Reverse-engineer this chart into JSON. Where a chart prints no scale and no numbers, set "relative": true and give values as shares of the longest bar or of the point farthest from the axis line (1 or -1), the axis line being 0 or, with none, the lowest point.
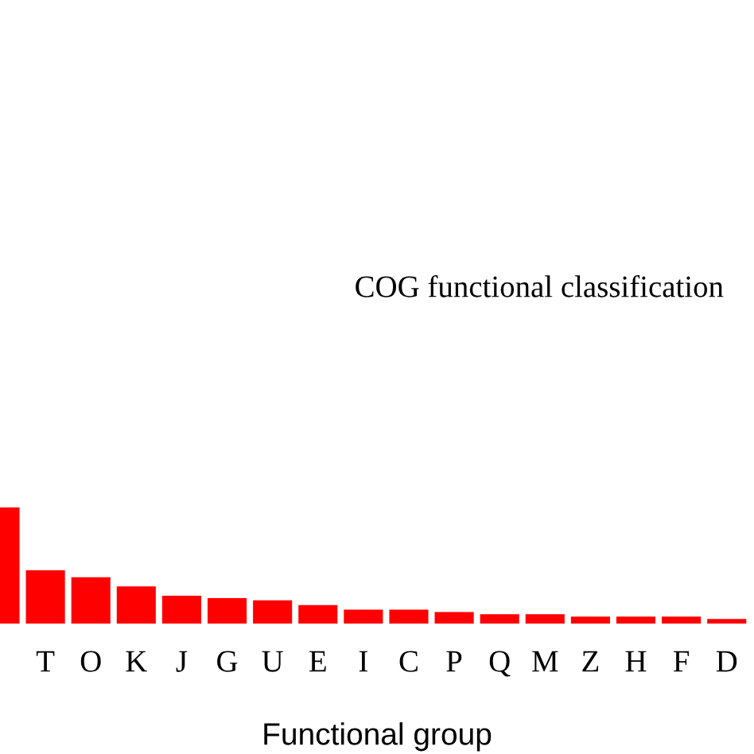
{
  "chart_data": {
    "type": "bar",
    "title": "COG functional classification",
    "xlabel": "Functional group",
    "categories": [
      null,
      "T",
      "O",
      "K",
      "J",
      "G",
      "U",
      "E",
      "I",
      "C",
      "P",
      "Q",
      "M",
      "Z",
      "H",
      "F",
      "D"
    ],
    "values": [
      1,
      0.46,
      0.4,
      0.32,
      0.24,
      0.22,
      0.2,
      0.16,
      0.12,
      0.12,
      0.1,
      0.08,
      0.08,
      0.06,
      0.06,
      0.06,
      0.04
    ],
    "color": "#ff0000",
    "relative": true
  }
}
